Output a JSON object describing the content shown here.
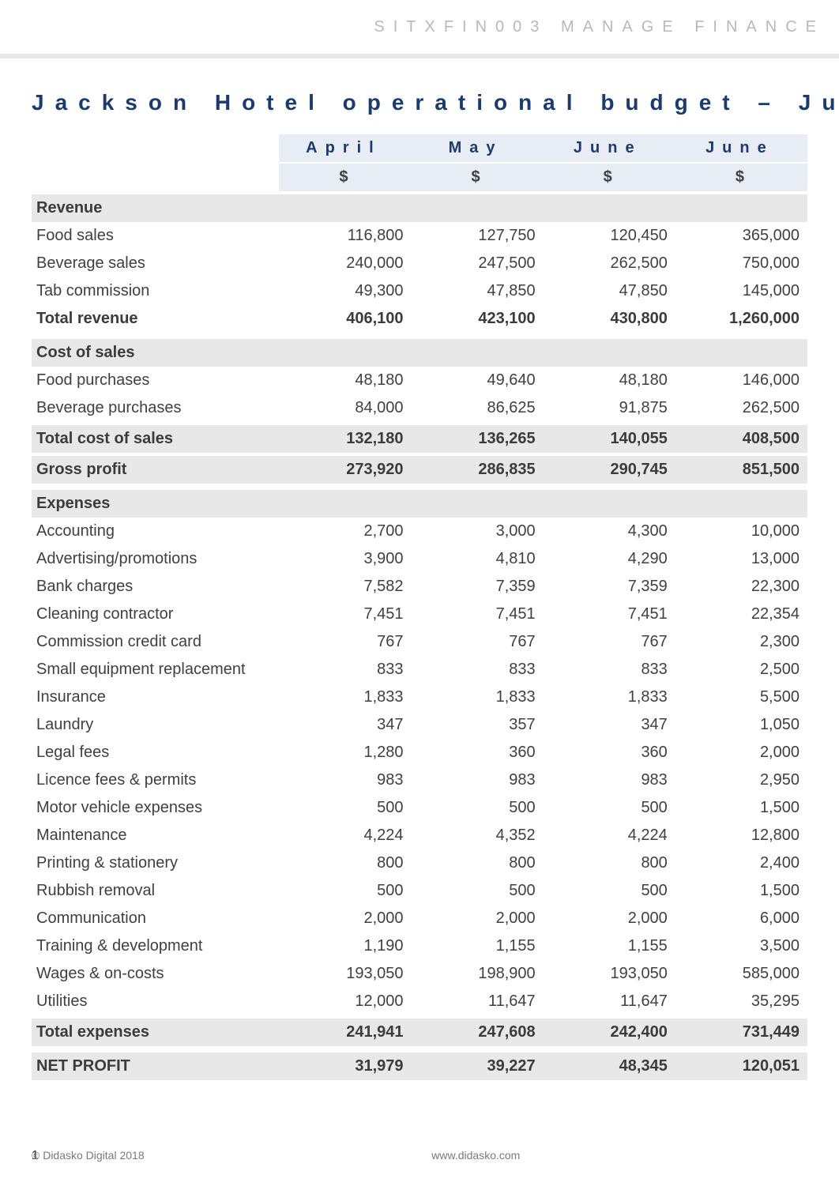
{
  "header": {
    "text": "SITXFIN003 MANAGE FINANCE"
  },
  "title": "Jackson Hotel operational budget – June quart",
  "columns": {
    "labels": [
      "April",
      "May",
      "June",
      "June"
    ],
    "units": [
      "$",
      "$",
      "$",
      "$"
    ]
  },
  "sections": [
    {
      "name": "Revenue",
      "rows": [
        {
          "label": "Food sales",
          "values": [
            "116,800",
            "127,750",
            "120,450",
            "365,000"
          ]
        },
        {
          "label": "Beverage sales",
          "values": [
            "240,000",
            "247,500",
            "262,500",
            "750,000"
          ]
        },
        {
          "label": "Tab commission",
          "values": [
            "49,300",
            "47,850",
            "47,850",
            "145,000"
          ]
        }
      ],
      "total": {
        "label": "Total revenue",
        "values": [
          "406,100",
          "423,100",
          "430,800",
          "1,260,000"
        ]
      }
    },
    {
      "name": "Cost of sales",
      "rows": [
        {
          "label": "Food purchases",
          "values": [
            "48,180",
            "49,640",
            "48,180",
            "146,000"
          ]
        },
        {
          "label": "Beverage purchases",
          "values": [
            "84,000",
            "86,625",
            "91,875",
            "262,500"
          ]
        }
      ],
      "total": {
        "label": "Total cost of sales",
        "values": [
          "132,180",
          "136,265",
          "140,055",
          "408,500"
        ]
      },
      "extra_total": {
        "label": "Gross profit",
        "values": [
          "273,920",
          "286,835",
          "290,745",
          "851,500"
        ]
      }
    },
    {
      "name": "Expenses",
      "rows": [
        {
          "label": "Accounting",
          "values": [
            "2,700",
            "3,000",
            "4,300",
            "10,000"
          ]
        },
        {
          "label": "Advertising/promotions",
          "values": [
            "3,900",
            "4,810",
            "4,290",
            "13,000"
          ]
        },
        {
          "label": "Bank charges",
          "values": [
            "7,582",
            "7,359",
            "7,359",
            "22,300"
          ]
        },
        {
          "label": "Cleaning contractor",
          "values": [
            "7,451",
            "7,451",
            "7,451",
            "22,354"
          ]
        },
        {
          "label": "Commission credit card",
          "values": [
            "767",
            "767",
            "767",
            "2,300"
          ]
        },
        {
          "label": "Small equipment replacement",
          "values": [
            "833",
            "833",
            "833",
            "2,500"
          ]
        },
        {
          "label": "Insurance",
          "values": [
            "1,833",
            "1,833",
            "1,833",
            "5,500"
          ]
        },
        {
          "label": "Laundry",
          "values": [
            "347",
            "357",
            "347",
            "1,050"
          ]
        },
        {
          "label": "Legal fees",
          "values": [
            "1,280",
            "360",
            "360",
            "2,000"
          ]
        },
        {
          "label": "Licence fees & permits",
          "values": [
            "983",
            "983",
            "983",
            "2,950"
          ]
        },
        {
          "label": "Motor vehicle expenses",
          "values": [
            "500",
            "500",
            "500",
            "1,500"
          ]
        },
        {
          "label": "Maintenance",
          "values": [
            "4,224",
            "4,352",
            "4,224",
            "12,800"
          ]
        },
        {
          "label": "Printing & stationery",
          "values": [
            "800",
            "800",
            "800",
            "2,400"
          ]
        },
        {
          "label": "Rubbish removal",
          "values": [
            "500",
            "500",
            "500",
            "1,500"
          ]
        },
        {
          "label": "Communication",
          "values": [
            "2,000",
            "2,000",
            "2,000",
            "6,000"
          ]
        },
        {
          "label": "Training & development",
          "values": [
            "1,190",
            "1,155",
            "1,155",
            "3,500"
          ]
        },
        {
          "label": "Wages & on-costs",
          "values": [
            "193,050",
            "198,900",
            "193,050",
            "585,000"
          ]
        },
        {
          "label": "Utilities",
          "values": [
            "12,000",
            "11,647",
            "11,647",
            "35,295"
          ]
        }
      ],
      "total": {
        "label": "Total expenses",
        "values": [
          "241,941",
          "247,608",
          "242,400",
          "731,449"
        ]
      }
    }
  ],
  "net_profit": {
    "label": "NET PROFIT",
    "values": [
      "31,979",
      "39,227",
      "48,345",
      "120,051"
    ]
  },
  "footer": {
    "left": "© Didasko Digital 2018",
    "mid": "www.didasko.com",
    "page": "1"
  },
  "style": {
    "accent": "#1b3b6f",
    "shade": "#e8e8e8",
    "head_shade": "#e8edf5",
    "text": "#404040"
  }
}
